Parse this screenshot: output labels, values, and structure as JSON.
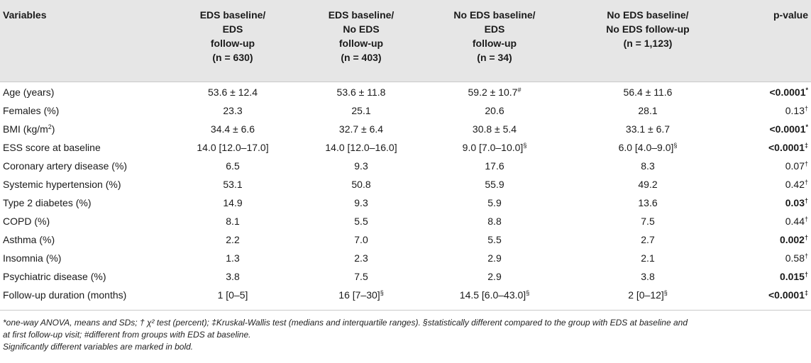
{
  "table": {
    "headers": [
      {
        "lines": [
          "Variables"
        ]
      },
      {
        "lines": [
          "EDS baseline/",
          "EDS",
          "follow-up",
          "(n = 630)"
        ]
      },
      {
        "lines": [
          "EDS baseline/",
          "No EDS",
          "follow-up",
          "(n = 403)"
        ]
      },
      {
        "lines": [
          "No EDS baseline/",
          "EDS",
          "follow-up",
          "(n = 34)"
        ]
      },
      {
        "lines": [
          "No EDS baseline/",
          "No EDS follow-up",
          "(n = 1,123)"
        ]
      },
      {
        "lines": [
          "p-value"
        ]
      }
    ],
    "rows": [
      {
        "cells": [
          {
            "text": "Age (years)"
          },
          {
            "text": "53.6 ± 12.4"
          },
          {
            "text": "53.6 ± 11.8"
          },
          {
            "text": "59.2 ± 10.7",
            "sup": "#"
          },
          {
            "text": "56.4 ± 11.6"
          },
          {
            "text": "<0.0001",
            "sup": "*",
            "bold": true
          }
        ]
      },
      {
        "cells": [
          {
            "text": "Females (%)"
          },
          {
            "text": "23.3"
          },
          {
            "text": "25.1"
          },
          {
            "text": "20.6"
          },
          {
            "text": "28.1"
          },
          {
            "text": "0.13",
            "sup": "†"
          }
        ]
      },
      {
        "cells": [
          {
            "text": "BMI (kg/m",
            "sup": "2",
            "after": ")"
          },
          {
            "text": "34.4 ± 6.6"
          },
          {
            "text": "32.7 ± 6.4"
          },
          {
            "text": "30.8 ± 5.4"
          },
          {
            "text": "33.1 ± 6.7"
          },
          {
            "text": "<0.0001",
            "sup": "*",
            "bold": true
          }
        ]
      },
      {
        "cells": [
          {
            "text": "ESS score at baseline"
          },
          {
            "text": "14.0 [12.0–17.0]"
          },
          {
            "text": "14.0 [12.0–16.0]"
          },
          {
            "text": "9.0 [7.0–10.0]",
            "sup": "§"
          },
          {
            "text": "6.0 [4.0–9.0]",
            "sup": "§"
          },
          {
            "text": "<0.0001",
            "sup": "‡",
            "bold": true
          }
        ]
      },
      {
        "cells": [
          {
            "text": "Coronary artery disease (%)"
          },
          {
            "text": "6.5"
          },
          {
            "text": "9.3"
          },
          {
            "text": "17.6"
          },
          {
            "text": "8.3"
          },
          {
            "text": "0.07",
            "sup": "†"
          }
        ]
      },
      {
        "cells": [
          {
            "text": "Systemic hypertension (%)"
          },
          {
            "text": "53.1"
          },
          {
            "text": "50.8"
          },
          {
            "text": "55.9"
          },
          {
            "text": "49.2"
          },
          {
            "text": "0.42",
            "sup": "†"
          }
        ]
      },
      {
        "cells": [
          {
            "text": "Type 2 diabetes (%)"
          },
          {
            "text": "14.9"
          },
          {
            "text": "9.3"
          },
          {
            "text": "5.9"
          },
          {
            "text": "13.6"
          },
          {
            "text": "0.03",
            "sup": "†",
            "bold": true
          }
        ]
      },
      {
        "cells": [
          {
            "text": "COPD (%)"
          },
          {
            "text": "8.1"
          },
          {
            "text": "5.5"
          },
          {
            "text": "8.8"
          },
          {
            "text": "7.5"
          },
          {
            "text": "0.44",
            "sup": "†"
          }
        ]
      },
      {
        "cells": [
          {
            "text": "Asthma (%)"
          },
          {
            "text": "2.2"
          },
          {
            "text": "7.0"
          },
          {
            "text": "5.5"
          },
          {
            "text": "2.7"
          },
          {
            "text": "0.002",
            "sup": "†",
            "bold": true
          }
        ]
      },
      {
        "cells": [
          {
            "text": "Insomnia (%)"
          },
          {
            "text": "1.3"
          },
          {
            "text": "2.3"
          },
          {
            "text": "2.9"
          },
          {
            "text": "2.1"
          },
          {
            "text": "0.58",
            "sup": "†"
          }
        ]
      },
      {
        "cells": [
          {
            "text": "Psychiatric disease (%)"
          },
          {
            "text": "3.8"
          },
          {
            "text": "7.5"
          },
          {
            "text": "2.9"
          },
          {
            "text": "3.8"
          },
          {
            "text": "0.015",
            "sup": "†",
            "bold": true
          }
        ]
      },
      {
        "cells": [
          {
            "text": "Follow-up duration (months)"
          },
          {
            "text": "1 [0–5]"
          },
          {
            "text": "16 [7–30]",
            "sup": "§"
          },
          {
            "text": "14.5 [6.0–43.0]",
            "sup": "§"
          },
          {
            "text": "2 [0–12]",
            "sup": "§"
          },
          {
            "text": "<0.0001",
            "sup": "‡",
            "bold": true
          }
        ]
      }
    ]
  },
  "footnotes": {
    "line1": "*one-way ANOVA, means and SDs; † χ² test (percent); ‡Kruskal-Wallis test (medians and interquartile ranges). §statistically different compared to the group with EDS at baseline and",
    "line2": "at first follow-up visit; #different from groups with EDS at baseline.",
    "line3": "Significantly different variables are marked in bold."
  }
}
